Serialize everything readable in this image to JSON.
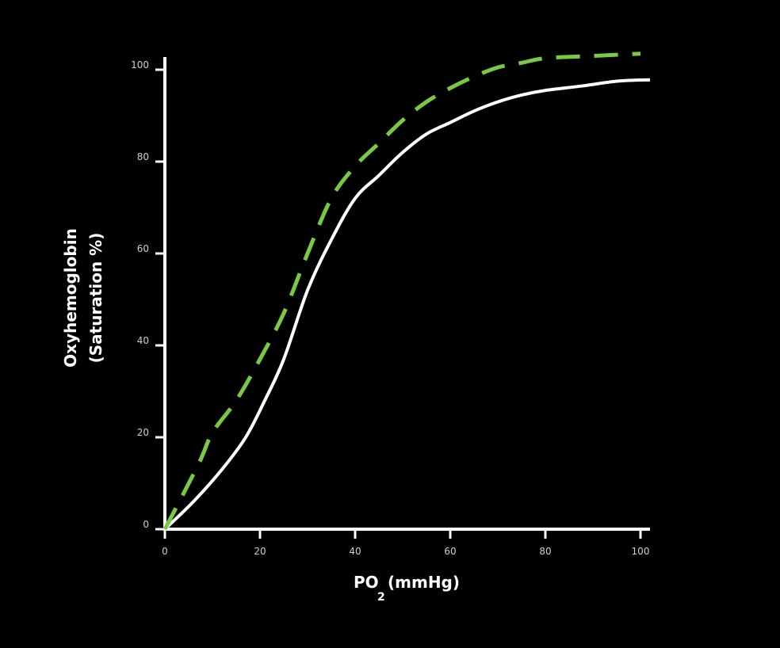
{
  "chart_data": {
    "type": "line",
    "title": "",
    "xlabel_main": "PO",
    "xlabel_sub": "2",
    "xlabel_unit": "(mmHg)",
    "ylabel_line1": "Oxyhemoglobin",
    "ylabel_line2": "(Saturation %)",
    "xlim": [
      0,
      100
    ],
    "ylim": [
      0,
      100
    ],
    "x_ticks": [
      0,
      20,
      40,
      60,
      80,
      100
    ],
    "y_ticks": [
      0,
      20,
      40,
      60,
      80,
      100
    ],
    "x_tick_labels": [
      "0",
      "20",
      "40",
      "60",
      "80",
      "100"
    ],
    "y_tick_labels": [
      "0",
      "20",
      "40",
      "60",
      "80",
      "100"
    ],
    "grid": false,
    "series": [
      {
        "name": "solid-curve",
        "style": "solid",
        "color": "#ffffff",
        "x": [
          0,
          6,
          12,
          17,
          21,
          25,
          30,
          35,
          40,
          45,
          50,
          55,
          60,
          65,
          70,
          75,
          80,
          88,
          95,
          102
        ],
        "y": [
          0,
          6,
          13,
          20,
          28,
          37,
          52,
          63,
          72,
          77,
          82,
          86,
          88.5,
          91,
          93,
          94.5,
          95.5,
          96.5,
          97.5,
          97.8
        ]
      },
      {
        "name": "dashed-curve",
        "style": "dashed",
        "color": "#7ac943",
        "x": [
          0,
          7,
          10,
          15,
          20,
          25,
          30,
          35,
          40,
          45,
          50,
          55,
          60,
          65,
          70,
          75,
          80,
          90,
          100
        ],
        "y": [
          0,
          14,
          21,
          28,
          37,
          47,
          60,
          72,
          79,
          84,
          89,
          93,
          96,
          98.5,
          100.5,
          101.5,
          102.5,
          103,
          103.5
        ]
      }
    ]
  }
}
